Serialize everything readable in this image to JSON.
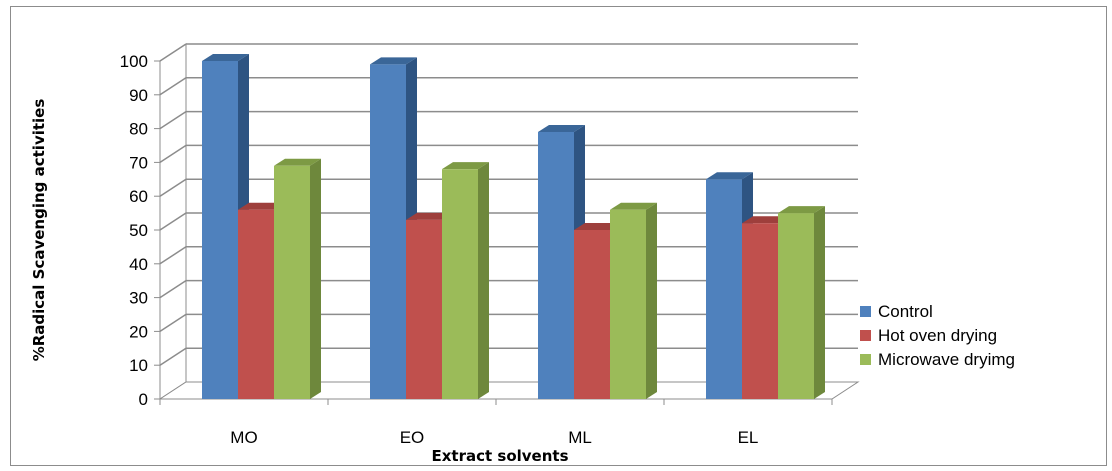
{
  "chart_data": {
    "type": "bar",
    "style": "3d-clustered-column",
    "categories": [
      "MO",
      "EO",
      "ML",
      "EL"
    ],
    "series": [
      {
        "name": "Control",
        "values": [
          100,
          99,
          79,
          65
        ],
        "color": "#4f81bd",
        "side_color": "#2e5482",
        "top_color": "#3a6698"
      },
      {
        "name": "Hot oven drying",
        "values": [
          56,
          53,
          50,
          52
        ],
        "color": "#c0504d",
        "side_color": "#8c3836",
        "top_color": "#9e3f3c"
      },
      {
        "name": "Microwave dryimg",
        "values": [
          69,
          68,
          56,
          55
        ],
        "color": "#9bbb59",
        "side_color": "#6e883c",
        "top_color": "#7d9a44"
      }
    ],
    "title": "",
    "xlabel": "Extract solvents",
    "ylabel": "%Radical Scavenging activities",
    "ylim": [
      0,
      100
    ],
    "yticks": [
      0,
      10,
      20,
      30,
      40,
      50,
      60,
      70,
      80,
      90,
      100
    ],
    "grid": true,
    "legend_position": "right"
  }
}
